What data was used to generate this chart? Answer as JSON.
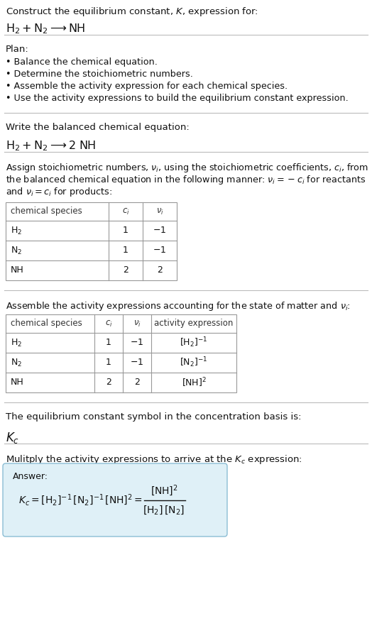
{
  "bg_color": "#ffffff",
  "text_color": "#000000",
  "title_line1": "Construct the equilibrium constant, $K$, expression for:",
  "title_line2": "$\\mathrm{H_2 + N_2 \\longrightarrow NH}$",
  "plan_header": "Plan:",
  "plan_bullets": [
    "• Balance the chemical equation.",
    "• Determine the stoichiometric numbers.",
    "• Assemble the activity expression for each chemical species.",
    "• Use the activity expressions to build the equilibrium constant expression."
  ],
  "balanced_header": "Write the balanced chemical equation:",
  "balanced_eq": "$\\mathrm{H_2 + N_2 \\longrightarrow 2\\ NH}$",
  "assign_text_lines": [
    "Assign stoichiometric numbers, $\\nu_i$, using the stoichiometric coefficients, $c_i$, from",
    "the balanced chemical equation in the following manner: $\\nu_i = -c_i$ for reactants",
    "and $\\nu_i = c_i$ for products:"
  ],
  "table1_headers": [
    "chemical species",
    "$c_i$",
    "$\\nu_i$"
  ],
  "table1_rows": [
    [
      "$\\mathrm{H_2}$",
      "1",
      "$-1$"
    ],
    [
      "$\\mathrm{N_2}$",
      "1",
      "$-1$"
    ],
    [
      "NH",
      "2",
      "2"
    ]
  ],
  "assemble_text": "Assemble the activity expressions accounting for the state of matter and $\\nu_i$:",
  "table2_headers": [
    "chemical species",
    "$c_i$",
    "$\\nu_i$",
    "activity expression"
  ],
  "table2_rows": [
    [
      "$\\mathrm{H_2}$",
      "1",
      "$-1$",
      "$[\\mathrm{H_2}]^{-1}$"
    ],
    [
      "$\\mathrm{N_2}$",
      "1",
      "$-1$",
      "$[\\mathrm{N_2}]^{-1}$"
    ],
    [
      "NH",
      "2",
      "2",
      "$[\\mathrm{NH}]^{2}$"
    ]
  ],
  "kc_symbol_text": "The equilibrium constant symbol in the concentration basis is:",
  "kc_symbol": "$K_c$",
  "multiply_text": "Mulitply the activity expressions to arrive at the $K_c$ expression:",
  "answer_box_color": "#dff0f7",
  "answer_box_border": "#8bbdd4",
  "answer_label": "Answer:",
  "answer_eq_left": "$K_c = [\\mathrm{H_2}]^{-1}\\,[\\mathrm{N_2}]^{-1}\\,[\\mathrm{NH}]^{2} = $",
  "answer_eq_frac_num": "$[\\mathrm{NH}]^2$",
  "answer_eq_frac_den": "$[\\mathrm{H_2}]\\,[\\mathrm{N_2}]$"
}
